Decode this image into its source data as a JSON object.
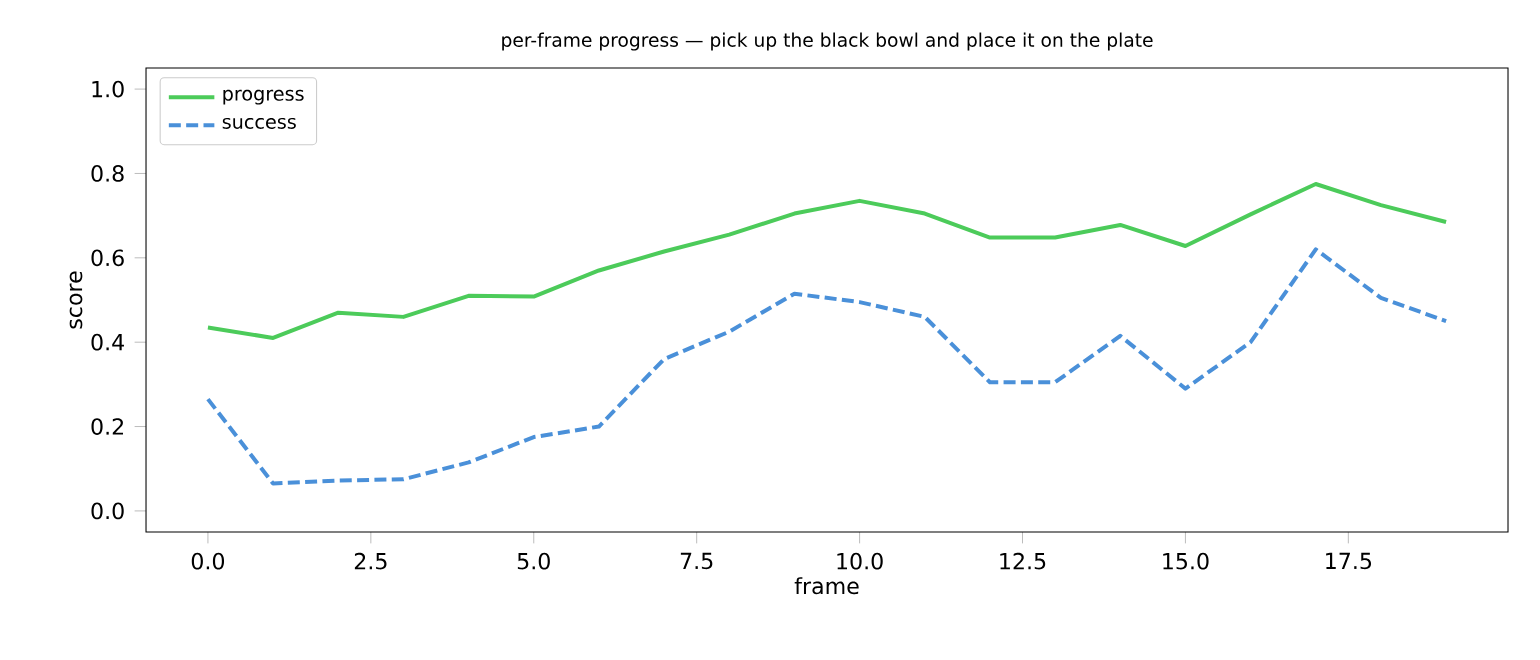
{
  "chart_data": {
    "type": "line",
    "title": "per-frame progress — pick up the black bowl and place it on the plate",
    "xlabel": "frame",
    "ylabel": "score",
    "x": [
      0,
      1,
      2,
      3,
      4,
      5,
      6,
      7,
      8,
      9,
      10,
      11,
      12,
      13,
      14,
      15,
      16,
      17,
      18,
      19
    ],
    "series": [
      {
        "name": "progress",
        "color": "#4ccb5a",
        "line_style": "solid",
        "values": [
          0.435,
          0.41,
          0.47,
          0.46,
          0.51,
          0.508,
          0.57,
          0.615,
          0.655,
          0.705,
          0.735,
          0.705,
          0.648,
          0.648,
          0.678,
          0.628,
          0.703,
          0.775,
          0.725,
          0.685
        ]
      },
      {
        "name": "success",
        "color": "#4a90d9",
        "line_style": "dashed",
        "values": [
          0.265,
          0.065,
          0.072,
          0.075,
          0.115,
          0.175,
          0.2,
          0.36,
          0.425,
          0.515,
          0.495,
          0.46,
          0.305,
          0.305,
          0.415,
          0.29,
          0.4,
          0.62,
          0.505,
          0.45
        ]
      }
    ],
    "xlim": [
      -0.95,
      19.95
    ],
    "ylim": [
      -0.05,
      1.05
    ],
    "xticks": [
      {
        "value": 0,
        "label": "0.0"
      },
      {
        "value": 2.5,
        "label": "2.5"
      },
      {
        "value": 5,
        "label": "5.0"
      },
      {
        "value": 7.5,
        "label": "7.5"
      },
      {
        "value": 10,
        "label": "10.0"
      },
      {
        "value": 12.5,
        "label": "12.5"
      },
      {
        "value": 15,
        "label": "15.0"
      },
      {
        "value": 17.5,
        "label": "17.5"
      }
    ],
    "yticks": [
      {
        "value": 0,
        "label": "0.0"
      },
      {
        "value": 0.2,
        "label": "0.2"
      },
      {
        "value": 0.4,
        "label": "0.4"
      },
      {
        "value": 0.6,
        "label": "0.6"
      },
      {
        "value": 0.8,
        "label": "0.8"
      },
      {
        "value": 1.0,
        "label": "1.0"
      }
    ],
    "grid": false,
    "legend": "top left"
  }
}
